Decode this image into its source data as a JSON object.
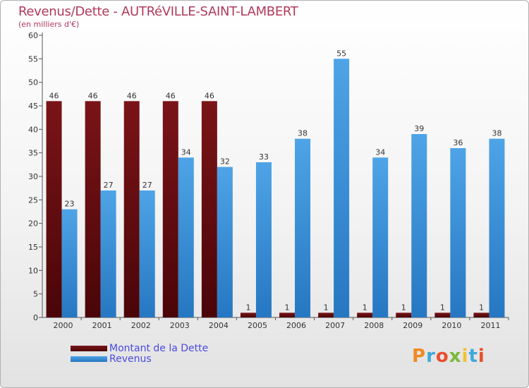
{
  "title": "Revenus/Dette - AUTRéVILLE-SAINT-LAMBERT",
  "subtitle": "(en milliers d'€)",
  "logo": {
    "text": "Proxiti"
  },
  "colors": {
    "dette": "#7a1418",
    "revenus": "#4ea4e6",
    "title": "#b03a5b",
    "legend_text": "#4a4ae0"
  },
  "chart_data": {
    "type": "bar",
    "categories": [
      "2000",
      "2001",
      "2002",
      "2003",
      "2004",
      "2005",
      "2006",
      "2007",
      "2008",
      "2009",
      "2010",
      "2011"
    ],
    "series": [
      {
        "name": "Montant de la Dette",
        "values": [
          46,
          46,
          46,
          46,
          46,
          1,
          1,
          1,
          1,
          1,
          1,
          1
        ]
      },
      {
        "name": "Revenus",
        "values": [
          23,
          27,
          27,
          34,
          32,
          33,
          38,
          55,
          34,
          39,
          36,
          38
        ]
      }
    ],
    "ylim": [
      0,
      60
    ],
    "yticks": [
      0,
      5,
      10,
      15,
      20,
      25,
      30,
      35,
      40,
      45,
      50,
      55,
      60
    ],
    "grid": false,
    "legend_position": "bottom-left"
  }
}
